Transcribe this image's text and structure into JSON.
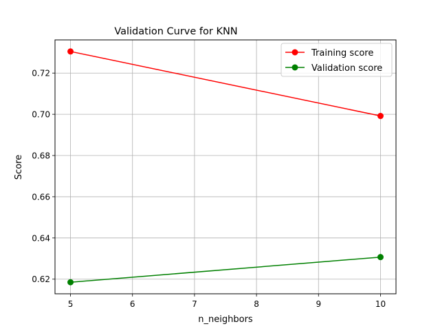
{
  "chart_data": {
    "type": "line",
    "title": "Validation Curve for KNN",
    "xlabel": "n_neighbors",
    "ylabel": "Score",
    "x": [
      5,
      10
    ],
    "xlim": [
      4.75,
      10.25
    ],
    "ylim": [
      0.6129,
      0.7361
    ],
    "xticks": [
      5,
      6,
      7,
      8,
      9,
      10
    ],
    "xtick_labels": [
      "5",
      "6",
      "7",
      "8",
      "9",
      "10"
    ],
    "yticks": [
      0.62,
      0.64,
      0.66,
      0.68,
      0.7,
      0.72
    ],
    "ytick_labels": [
      "0.62",
      "0.64",
      "0.66",
      "0.68",
      "0.70",
      "0.72"
    ],
    "grid": true,
    "legend_position": "top-right",
    "series": [
      {
        "name": "Training score",
        "color": "#ff0000",
        "values": [
          0.7305,
          0.6992
        ]
      },
      {
        "name": "Validation score",
        "color": "#008000",
        "values": [
          0.6185,
          0.6307
        ]
      }
    ]
  }
}
